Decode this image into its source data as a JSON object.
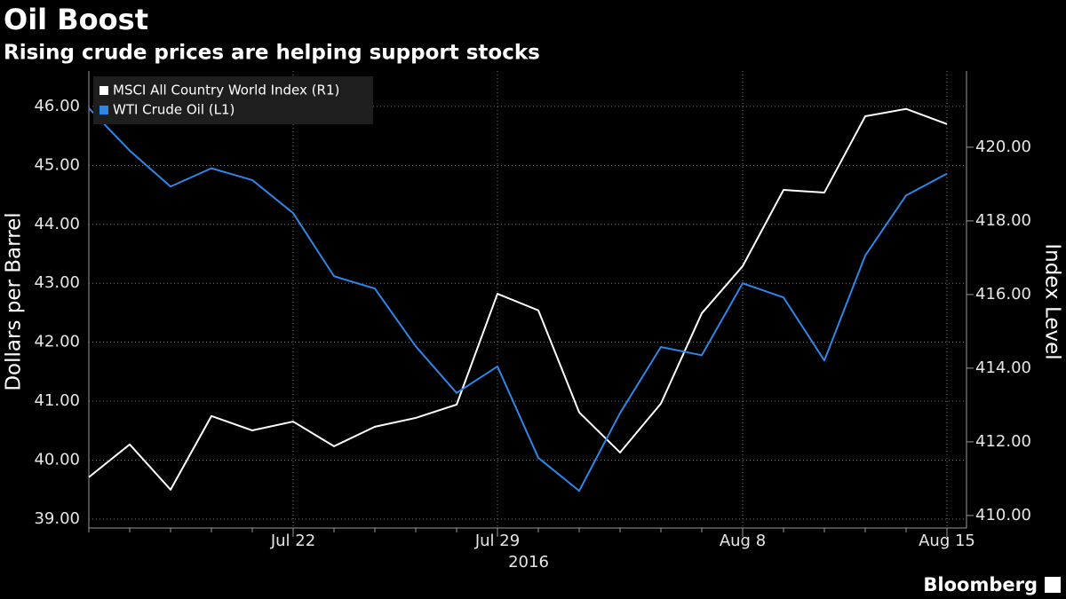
{
  "chart_data": {
    "type": "line",
    "title": "Oil Boost",
    "subtitle": "Rising crude prices are helping support stocks",
    "ylabel": "Dollars per Barrel",
    "y2label": "Index Level",
    "xaxis_year": "2016",
    "source": "Bloomberg",
    "categories": [
      null,
      null,
      null,
      null,
      null,
      "Jul 22",
      null,
      null,
      null,
      null,
      "Jul 29",
      null,
      null,
      null,
      null,
      null,
      "Aug 8",
      null,
      null,
      null,
      null,
      "Aug 15"
    ],
    "series": [
      {
        "name": "MSCI All Country World Index (R1)",
        "color": "#ffffff",
        "axis": "y2",
        "values": [
          411.04,
          411.93,
          410.7,
          412.7,
          412.31,
          412.55,
          411.88,
          412.41,
          412.65,
          413.01,
          416.02,
          415.57,
          412.8,
          411.71,
          413.04,
          415.49,
          416.77,
          418.84,
          418.77,
          420.84,
          421.04,
          420.63
        ]
      },
      {
        "name": "WTI Crude Oil (L1)",
        "color": "#2f86e8",
        "axis": "y",
        "values": [
          45.97,
          45.25,
          44.64,
          44.95,
          44.75,
          44.19,
          43.12,
          42.91,
          41.93,
          41.14,
          41.59,
          40.04,
          39.48,
          40.8,
          41.92,
          41.78,
          43.0,
          42.76,
          41.69,
          43.47,
          44.49,
          44.86
        ]
      }
    ],
    "ylim": [
      38.85,
      46.6
    ],
    "yticks": [
      {
        "value": 39,
        "label": "39.00"
      },
      {
        "value": 40,
        "label": "40.00"
      },
      {
        "value": 41,
        "label": "41.00"
      },
      {
        "value": 42,
        "label": "42.00"
      },
      {
        "value": 43,
        "label": "43.00"
      },
      {
        "value": 44,
        "label": "44.00"
      },
      {
        "value": 45,
        "label": "45.00"
      },
      {
        "value": 46,
        "label": "46.00"
      }
    ],
    "y2lim": [
      409.66,
      422.07
    ],
    "y2ticks": [
      {
        "value": 410,
        "label": "410.00"
      },
      {
        "value": 412,
        "label": "412.00"
      },
      {
        "value": 414,
        "label": "414.00"
      },
      {
        "value": 416,
        "label": "416.00"
      },
      {
        "value": 418,
        "label": "418.00"
      },
      {
        "value": 420,
        "label": "420.00"
      }
    ],
    "grid": true,
    "legend": "top-left"
  }
}
